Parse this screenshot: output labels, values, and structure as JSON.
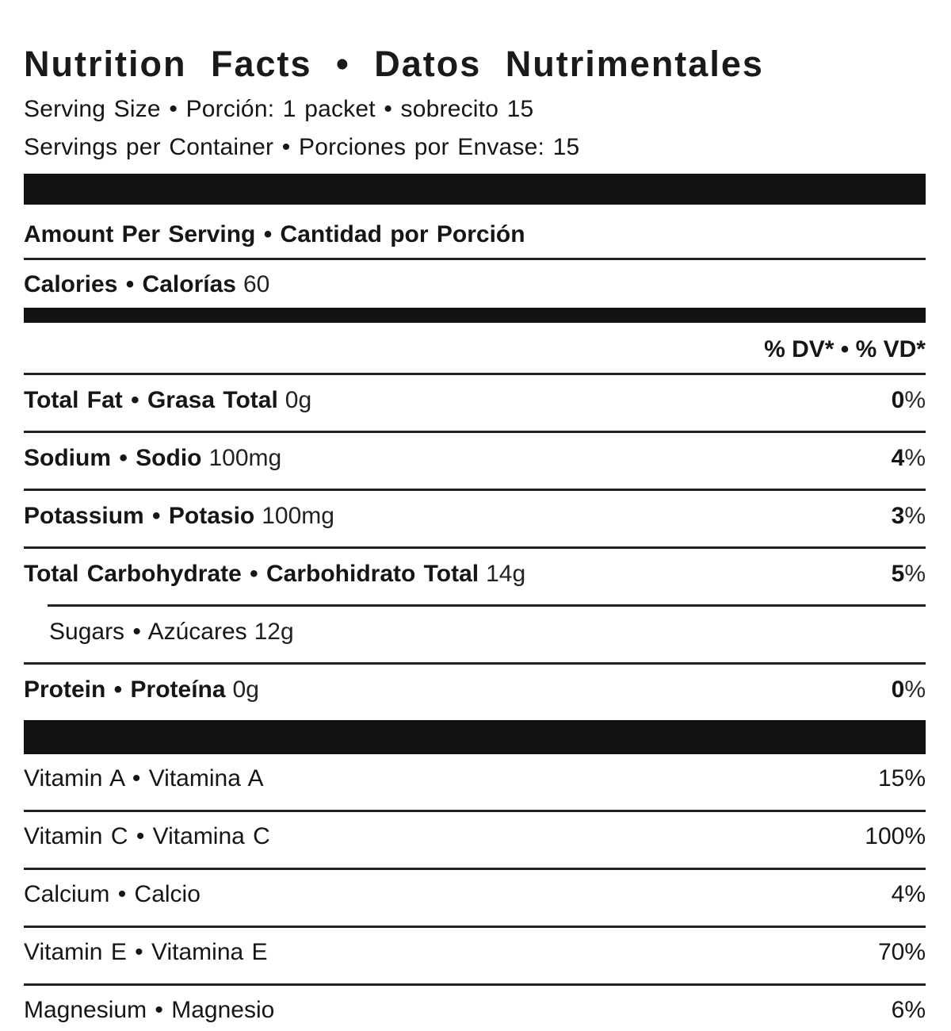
{
  "title": "Nutrition Facts • Datos Nutrimentales",
  "serving": {
    "size_line": "Serving Size • Porción: 1 packet • sobrecito 15",
    "per_container_line": "Servings per Container • Porciones por Envase: 15"
  },
  "amount_per_serving_heading": "Amount Per Serving • Cantidad por Porción",
  "calories": {
    "label": "Calories • Calorías",
    "value": "60"
  },
  "dv_header": "% DV* • % VD*",
  "nutrients": [
    {
      "label": "Total Fat • Grasa Total",
      "amount": "0g",
      "dv_number": "0",
      "dv_sign": "%"
    },
    {
      "label": "Sodium • Sodio",
      "amount": "100mg",
      "dv_number": "4",
      "dv_sign": "%"
    },
    {
      "label": "Potassium • Potasio",
      "amount": "100mg",
      "dv_number": "3",
      "dv_sign": "%"
    },
    {
      "label": "Total Carbohydrate • Carbohidrato Total",
      "amount": "14g",
      "dv_number": "5",
      "dv_sign": "%"
    },
    {
      "label": "Sugars • Azúcares",
      "amount": "12g",
      "dv_number": "",
      "dv_sign": ""
    },
    {
      "label": "Protein • Proteína",
      "amount": "0g",
      "dv_number": "0",
      "dv_sign": "%"
    }
  ],
  "vitamins": [
    {
      "label": "Vitamin A • Vitamina A",
      "dv": "15%"
    },
    {
      "label": "Vitamin C • Vitamina C",
      "dv": "100%"
    },
    {
      "label": "Calcium • Calcio",
      "dv": "4%"
    },
    {
      "label": "Vitamin E • Vitamina E",
      "dv": "70%"
    },
    {
      "label": "Magnesium • Magnesio",
      "dv": "6%"
    }
  ],
  "colors": {
    "background": "#ffffff",
    "text": "#161616",
    "separator_bar": "#141114",
    "rule": "#222222"
  }
}
